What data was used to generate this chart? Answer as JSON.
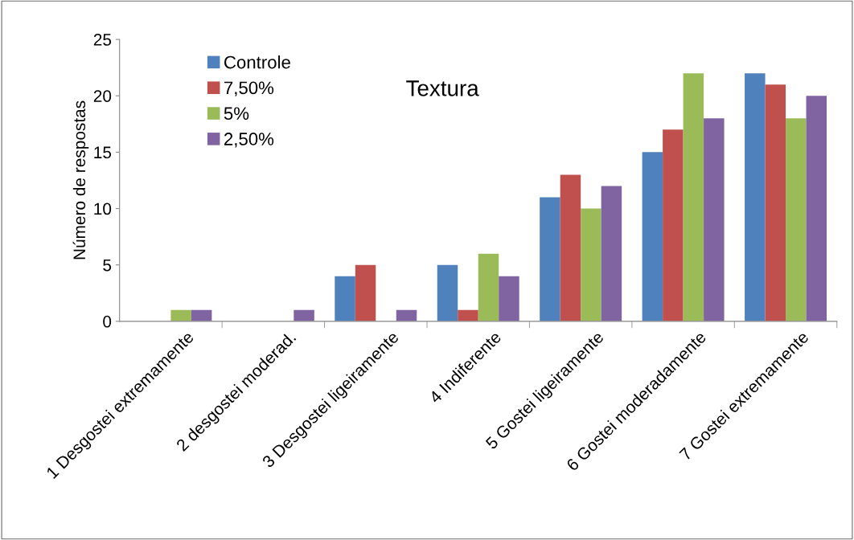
{
  "chart_data": {
    "type": "bar",
    "title": "Textura",
    "ylabel": "Número de respostas",
    "categories": [
      "1 Desgostei extremamente",
      "2 desgostei moderad.",
      "3 Desgostei ligeiramente",
      "4 Indiferente",
      "5 Gostei ligeiramente",
      "6 Gostei moderadamente",
      "7 Gostei extremamente"
    ],
    "series": [
      {
        "name": "Controle",
        "color": "#4f81bd",
        "values": [
          0,
          0,
          4,
          5,
          11,
          15,
          22
        ]
      },
      {
        "name": "7,50%",
        "color": "#c0504d",
        "values": [
          0,
          0,
          5,
          1,
          13,
          17,
          21
        ]
      },
      {
        "name": "5%",
        "color": "#9bbb59",
        "values": [
          1,
          0,
          0,
          6,
          10,
          22,
          18
        ]
      },
      {
        "name": "2,50%",
        "color": "#8064a2",
        "values": [
          1,
          1,
          1,
          4,
          12,
          18,
          20
        ]
      }
    ],
    "ylim": [
      0,
      25
    ],
    "yticks": [
      0,
      5,
      10,
      15,
      20,
      25
    ],
    "grid": false,
    "legend": "top left"
  }
}
